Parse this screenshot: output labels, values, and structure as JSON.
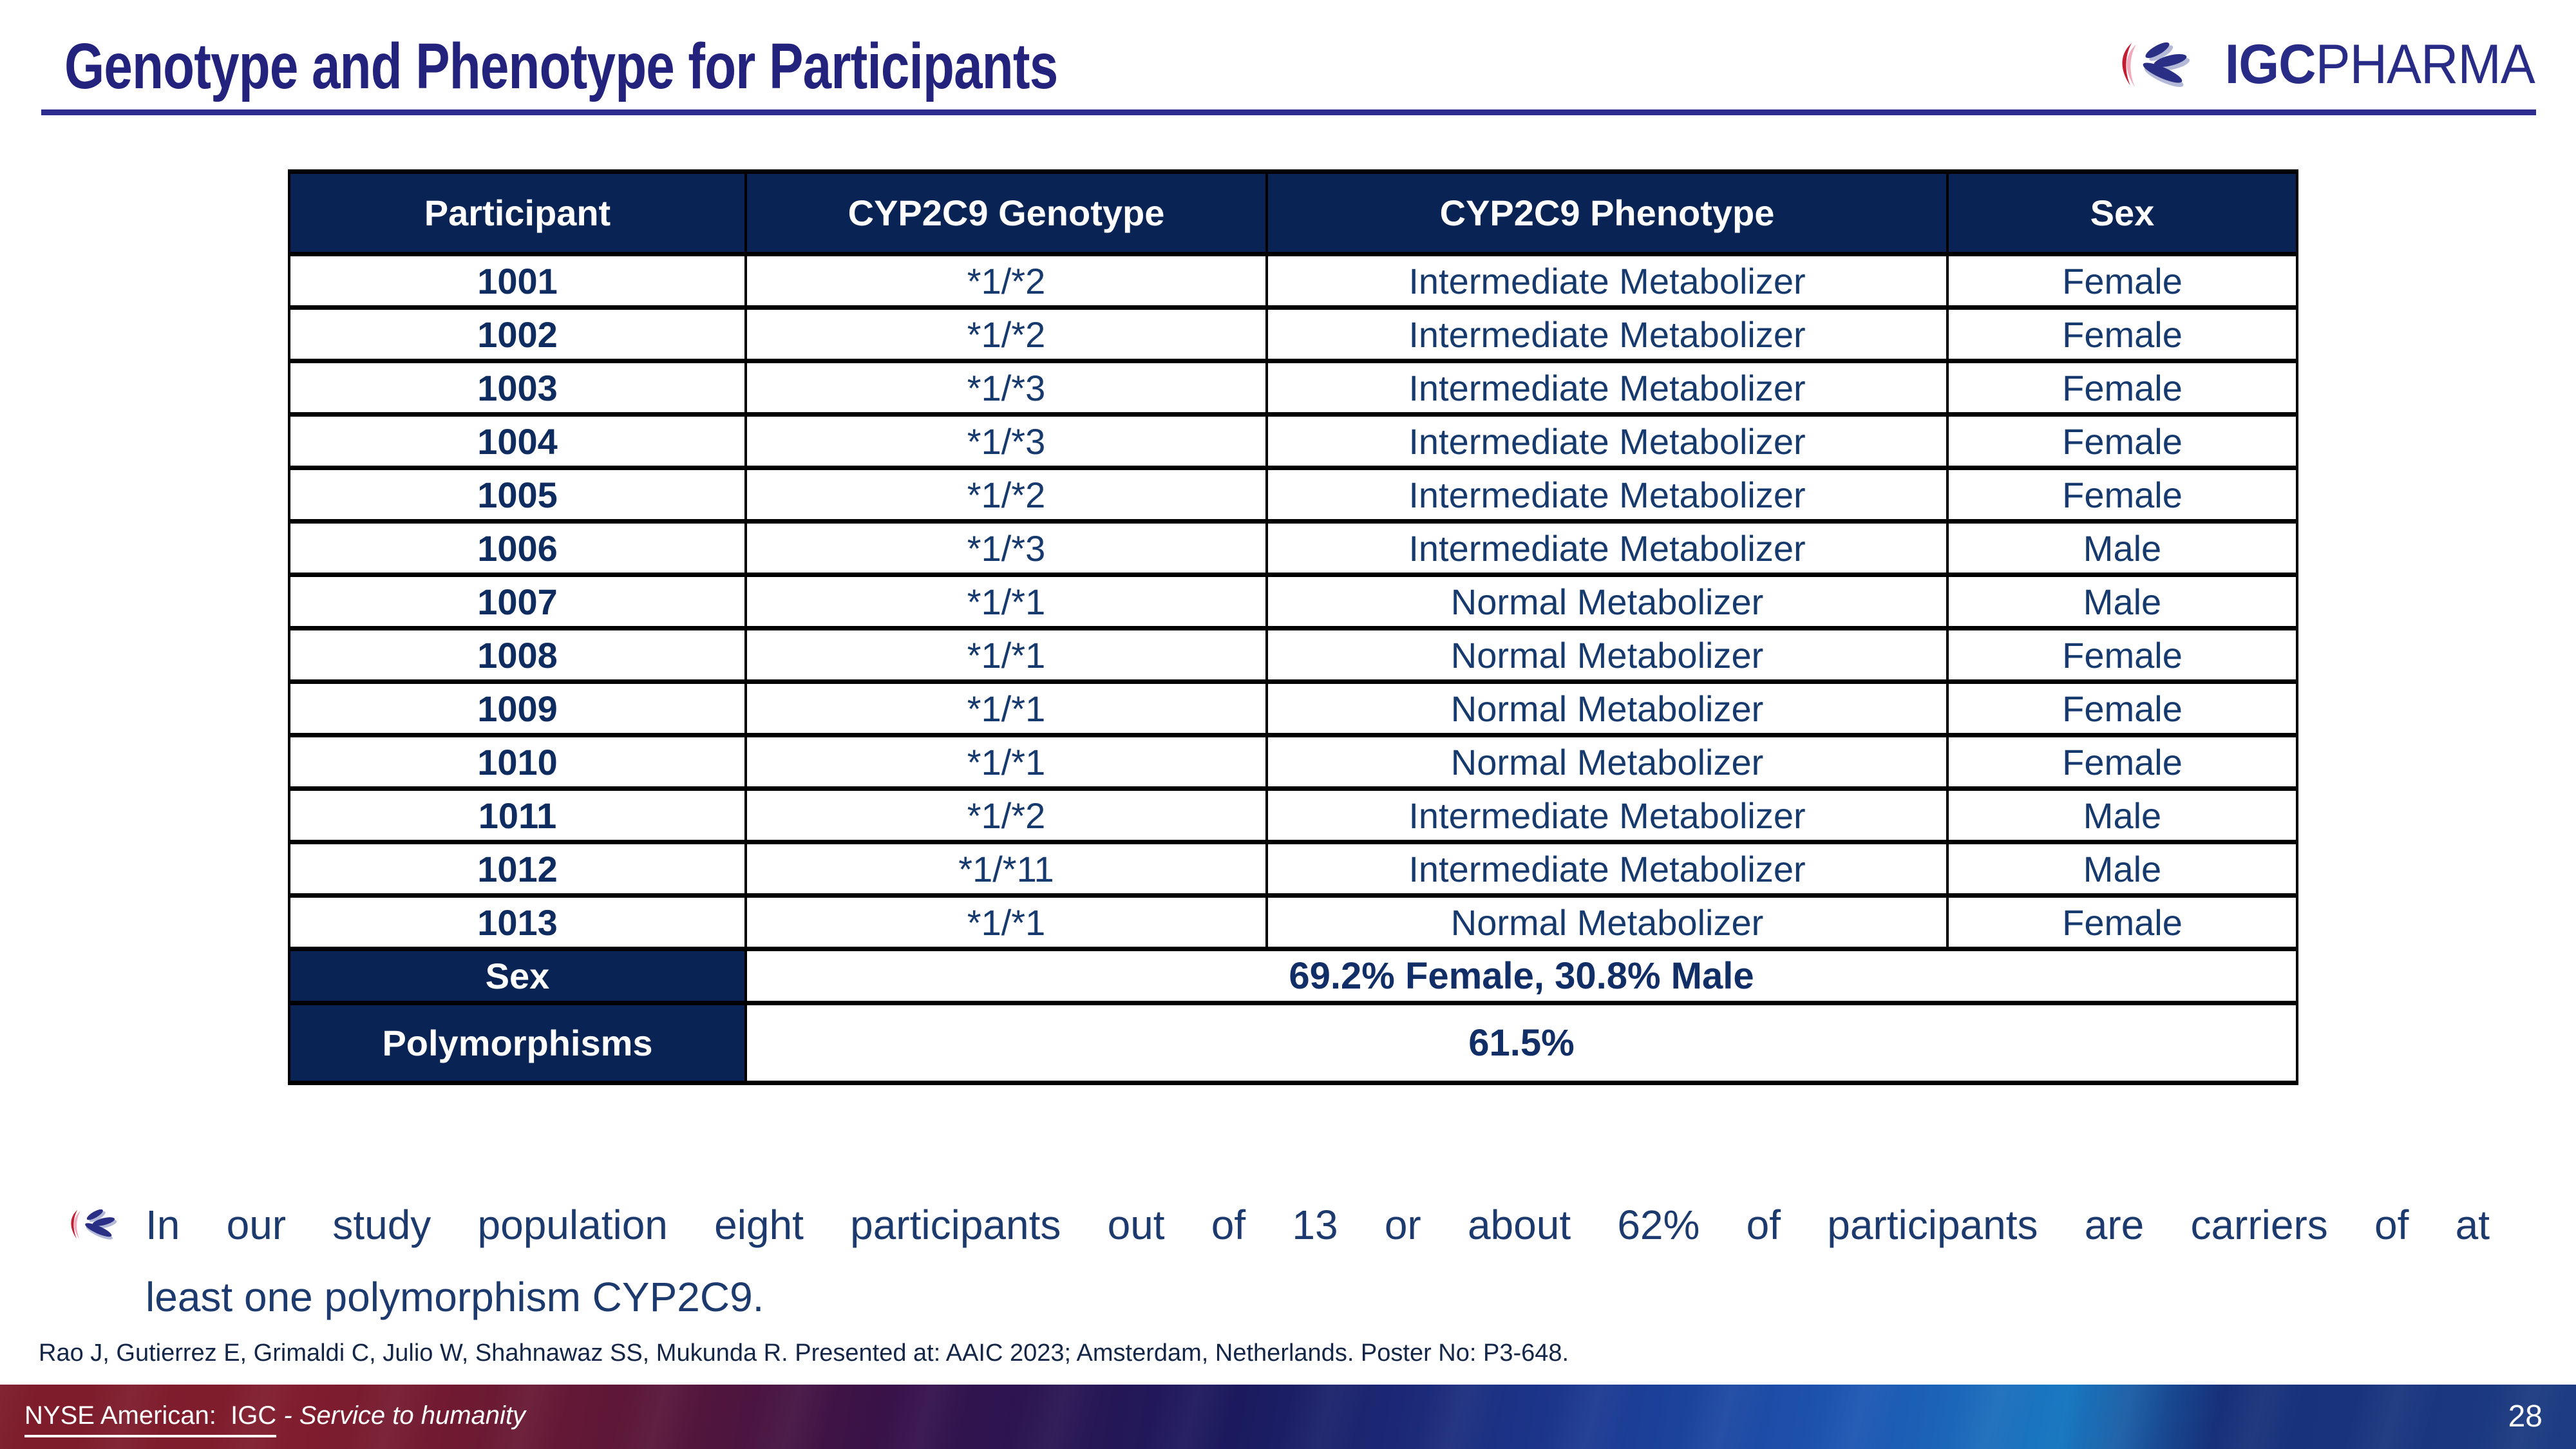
{
  "slide": {
    "title": "Genotype and Phenotype for Participants"
  },
  "logo": {
    "icon": "igc-leaf-crescent-icon",
    "text_bold": "IGC",
    "text_regular": "PHARMA"
  },
  "table": {
    "headers": [
      "Participant",
      "CYP2C9 Genotype",
      "CYP2C9 Phenotype",
      "Sex"
    ],
    "rows": [
      {
        "participant": "1001",
        "genotype": "*1/*2",
        "phenotype": "Intermediate Metabolizer",
        "sex": "Female"
      },
      {
        "participant": "1002",
        "genotype": "*1/*2",
        "phenotype": "Intermediate Metabolizer",
        "sex": "Female"
      },
      {
        "participant": "1003",
        "genotype": "*1/*3",
        "phenotype": "Intermediate Metabolizer",
        "sex": "Female"
      },
      {
        "participant": "1004",
        "genotype": "*1/*3",
        "phenotype": "Intermediate Metabolizer",
        "sex": "Female"
      },
      {
        "participant": "1005",
        "genotype": "*1/*2",
        "phenotype": "Intermediate Metabolizer",
        "sex": "Female"
      },
      {
        "participant": "1006",
        "genotype": "*1/*3",
        "phenotype": "Intermediate Metabolizer",
        "sex": "Male"
      },
      {
        "participant": "1007",
        "genotype": "*1/*1",
        "phenotype": "Normal Metabolizer",
        "sex": "Male"
      },
      {
        "participant": "1008",
        "genotype": "*1/*1",
        "phenotype": "Normal Metabolizer",
        "sex": "Female"
      },
      {
        "participant": "1009",
        "genotype": "*1/*1",
        "phenotype": "Normal Metabolizer",
        "sex": "Female"
      },
      {
        "participant": "1010",
        "genotype": "*1/*1",
        "phenotype": "Normal Metabolizer",
        "sex": "Female"
      },
      {
        "participant": "1011",
        "genotype": "*1/*2",
        "phenotype": "Intermediate Metabolizer",
        "sex": "Male"
      },
      {
        "participant": "1012",
        "genotype": "*1/*11",
        "phenotype": "Intermediate Metabolizer",
        "sex": "Male"
      },
      {
        "participant": "1013",
        "genotype": "*1/*1",
        "phenotype": "Normal Metabolizer",
        "sex": "Female"
      }
    ],
    "summary": [
      {
        "key": "sex",
        "label": "Sex",
        "value": "69.2% Female, 30.8% Male"
      },
      {
        "key": "polymorphisms",
        "label": "Polymorphisms",
        "value": "61.5%"
      }
    ]
  },
  "bullet": {
    "icon": "igc-leaf-bullet-icon",
    "lines": [
      "In our study population eight participants out of 13 or about 62% of participants are carriers of at",
      "least one polymorphism CYP2C9."
    ]
  },
  "citation": "Rao J, Gutierrez E, Grimaldi C, Julio W, Shahnawaz SS, Mukunda R. Presented at: AAIC 2023; Amsterdam, Netherlands. Poster No: P3-648.",
  "footer": {
    "ticker": "NYSE American:  IGC",
    "tagline": " - Service to humanity",
    "page_number": "28"
  },
  "colors": {
    "header_navy": "#0a2355",
    "title_indigo": "#23237e",
    "table_text_navy": "#163a6e",
    "logo_red": "#c41c30",
    "footer_gradient_left": "#7d1c2b",
    "footer_gradient_right": "#1d3c82"
  }
}
